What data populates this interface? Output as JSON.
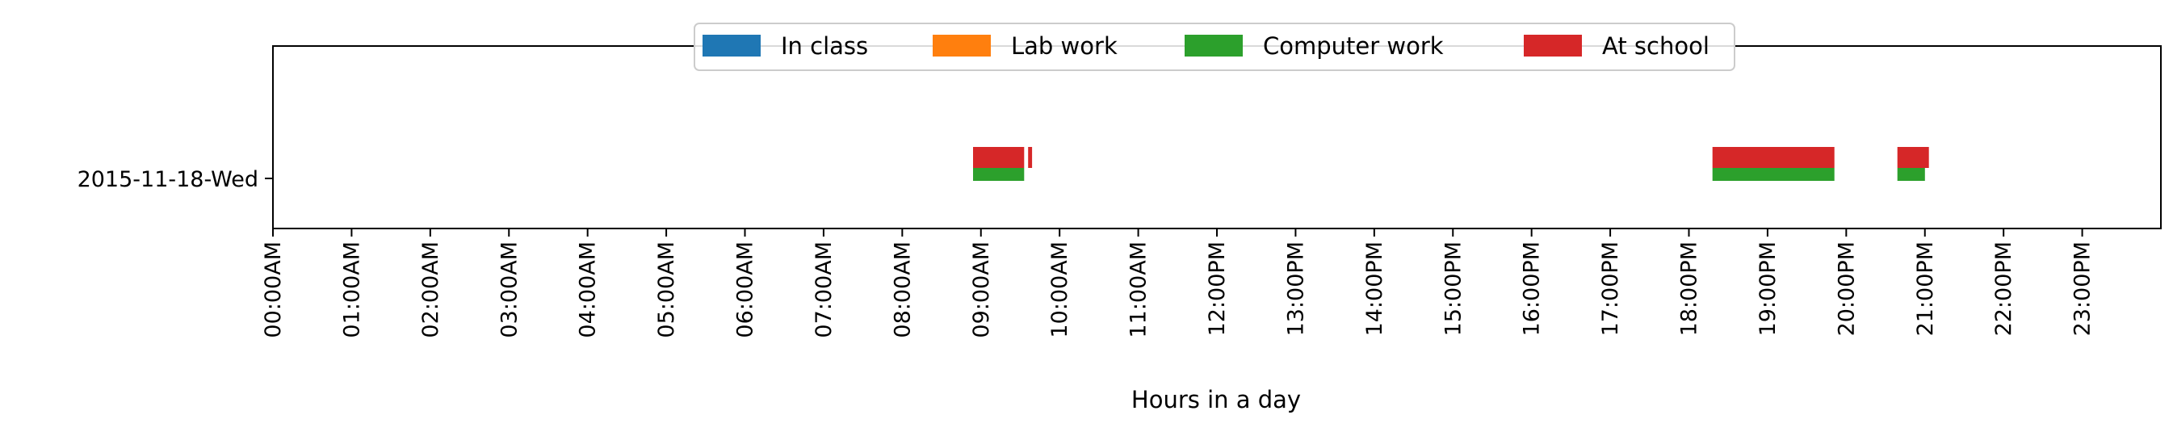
{
  "chart_data": {
    "type": "bar",
    "orientation": "horizontal",
    "xlabel": "Hours in a day",
    "ylabel": "",
    "xlim": [
      0,
      24
    ],
    "xtick_values": [
      0,
      1,
      2,
      3,
      4,
      5,
      6,
      7,
      8,
      9,
      10,
      11,
      12,
      13,
      14,
      15,
      16,
      17,
      18,
      19,
      20,
      21,
      22,
      23
    ],
    "xtick_labels": [
      "00:00AM",
      "01:00AM",
      "02:00AM",
      "03:00AM",
      "04:00AM",
      "05:00AM",
      "06:00AM",
      "07:00AM",
      "08:00AM",
      "09:00AM",
      "10:00AM",
      "11:00AM",
      "12:00PM",
      "13:00PM",
      "14:00PM",
      "15:00PM",
      "16:00PM",
      "17:00PM",
      "18:00PM",
      "19:00PM",
      "20:00PM",
      "21:00PM",
      "22:00PM",
      "23:00PM"
    ],
    "ytick_labels": [
      "2015-11-18-Wed"
    ],
    "legend_position": "top-center",
    "grid": false,
    "series": [
      {
        "name": "In class",
        "color": "#1f77b4",
        "intervals": []
      },
      {
        "name": "Lab work",
        "color": "#ff7f0e",
        "intervals": []
      },
      {
        "name": "Computer work",
        "color": "#2ca02c",
        "intervals": [
          [
            8.9,
            9.55
          ],
          [
            18.3,
            19.85
          ],
          [
            20.65,
            21.0
          ]
        ]
      },
      {
        "name": "At school",
        "color": "#d62728",
        "intervals": [
          [
            8.9,
            9.55
          ],
          [
            9.6,
            9.65
          ],
          [
            18.3,
            19.85
          ],
          [
            20.65,
            21.05
          ]
        ]
      }
    ]
  }
}
